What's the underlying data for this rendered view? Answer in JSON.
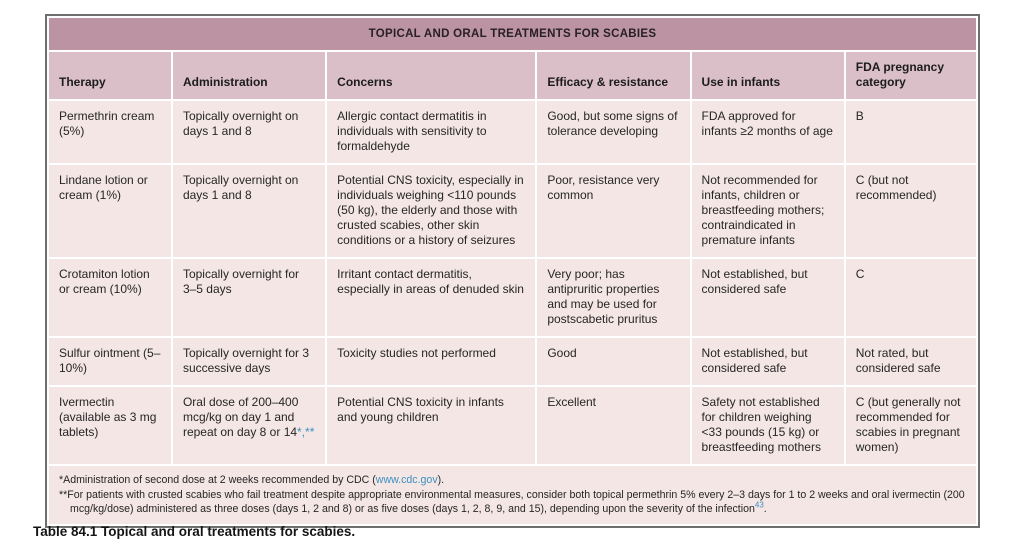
{
  "colors": {
    "title_bg": "#bc93a2",
    "header_bg": "#dabfc9",
    "cell_bg": "#f3e6e4",
    "separator": "#ffffff",
    "outer_border": "#6e6e6e",
    "link_accent": "#3f8fc0",
    "text": "#262626"
  },
  "table": {
    "title": "TOPICAL AND ORAL TREATMENTS FOR SCABIES",
    "columns": [
      "Therapy",
      "Administration",
      "Concerns",
      "Efficacy & resistance",
      "Use in infants",
      "FDA pregnancy category"
    ],
    "rows": [
      {
        "cells": [
          "Permethrin cream (5%)",
          "Topically overnight on days 1 and 8",
          "Allergic contact dermatitis in individuals with sensitivity to formaldehyde",
          "Good, but some signs of tolerance developing",
          "FDA approved for infants ≥2 months of age",
          "B"
        ]
      },
      {
        "cells": [
          "Lindane lotion or cream (1%)",
          "Topically overnight on days 1 and 8",
          "Potential CNS toxicity, especially in individuals weighing <110 pounds (50 kg), the elderly and those with crusted scabies, other skin conditions or a history of seizures",
          "Poor, resistance very common",
          "Not recommended for infants, children or breastfeeding mothers; contraindicated in premature infants",
          "C (but not recommended)"
        ]
      },
      {
        "cells": [
          "Crotamiton lotion or cream (10%)",
          "Topically overnight for 3–5 days",
          "Irritant contact dermatitis, especially in areas of denuded skin",
          "Very poor; has antipruritic properties and may be used for postscabetic pruritus",
          "Not established, but considered safe",
          "C"
        ]
      },
      {
        "cells": [
          "Sulfur ointment (5–10%)",
          "Topically overnight for 3 successive days",
          "Toxicity studies not performed",
          "Good",
          "Not established, but considered safe",
          "Not rated, but considered safe"
        ]
      },
      {
        "cells": [
          "Ivermectin (available as 3 mg tablets)",
          {
            "text": "Oral dose of 200–400 mcg/kg on day 1 and repeat on day 8 or 14",
            "marker": "*,**"
          },
          "Potential CNS toxicity in infants and young children",
          "Excellent",
          "Safety not established for children weighing <33 pounds (15 kg) or breastfeeding mothers",
          "C (but generally not recommended for scabies in pregnant women)"
        ]
      }
    ]
  },
  "footnotes": {
    "first": {
      "pre": "*Administration of second dose at 2 weeks recommended by CDC (",
      "link": "www.cdc.gov",
      "post": ")."
    },
    "second": {
      "text": "**For patients with crusted scabies who fail treatment despite appropriate environmental measures, consider both topical permethrin 5% every 2–3 days for 1 to 2 weeks and oral ivermectin (200 mcg/kg/dose) administered as three doses (days 1, 2 and 8) or as five doses (days 1, 2, 8, 9, and 15), depending upon the severity of the infection",
      "ref": "43",
      "post": "."
    }
  },
  "caption": {
    "label": "Table 84.1",
    "text": " Topical and oral treatments for scabies."
  }
}
